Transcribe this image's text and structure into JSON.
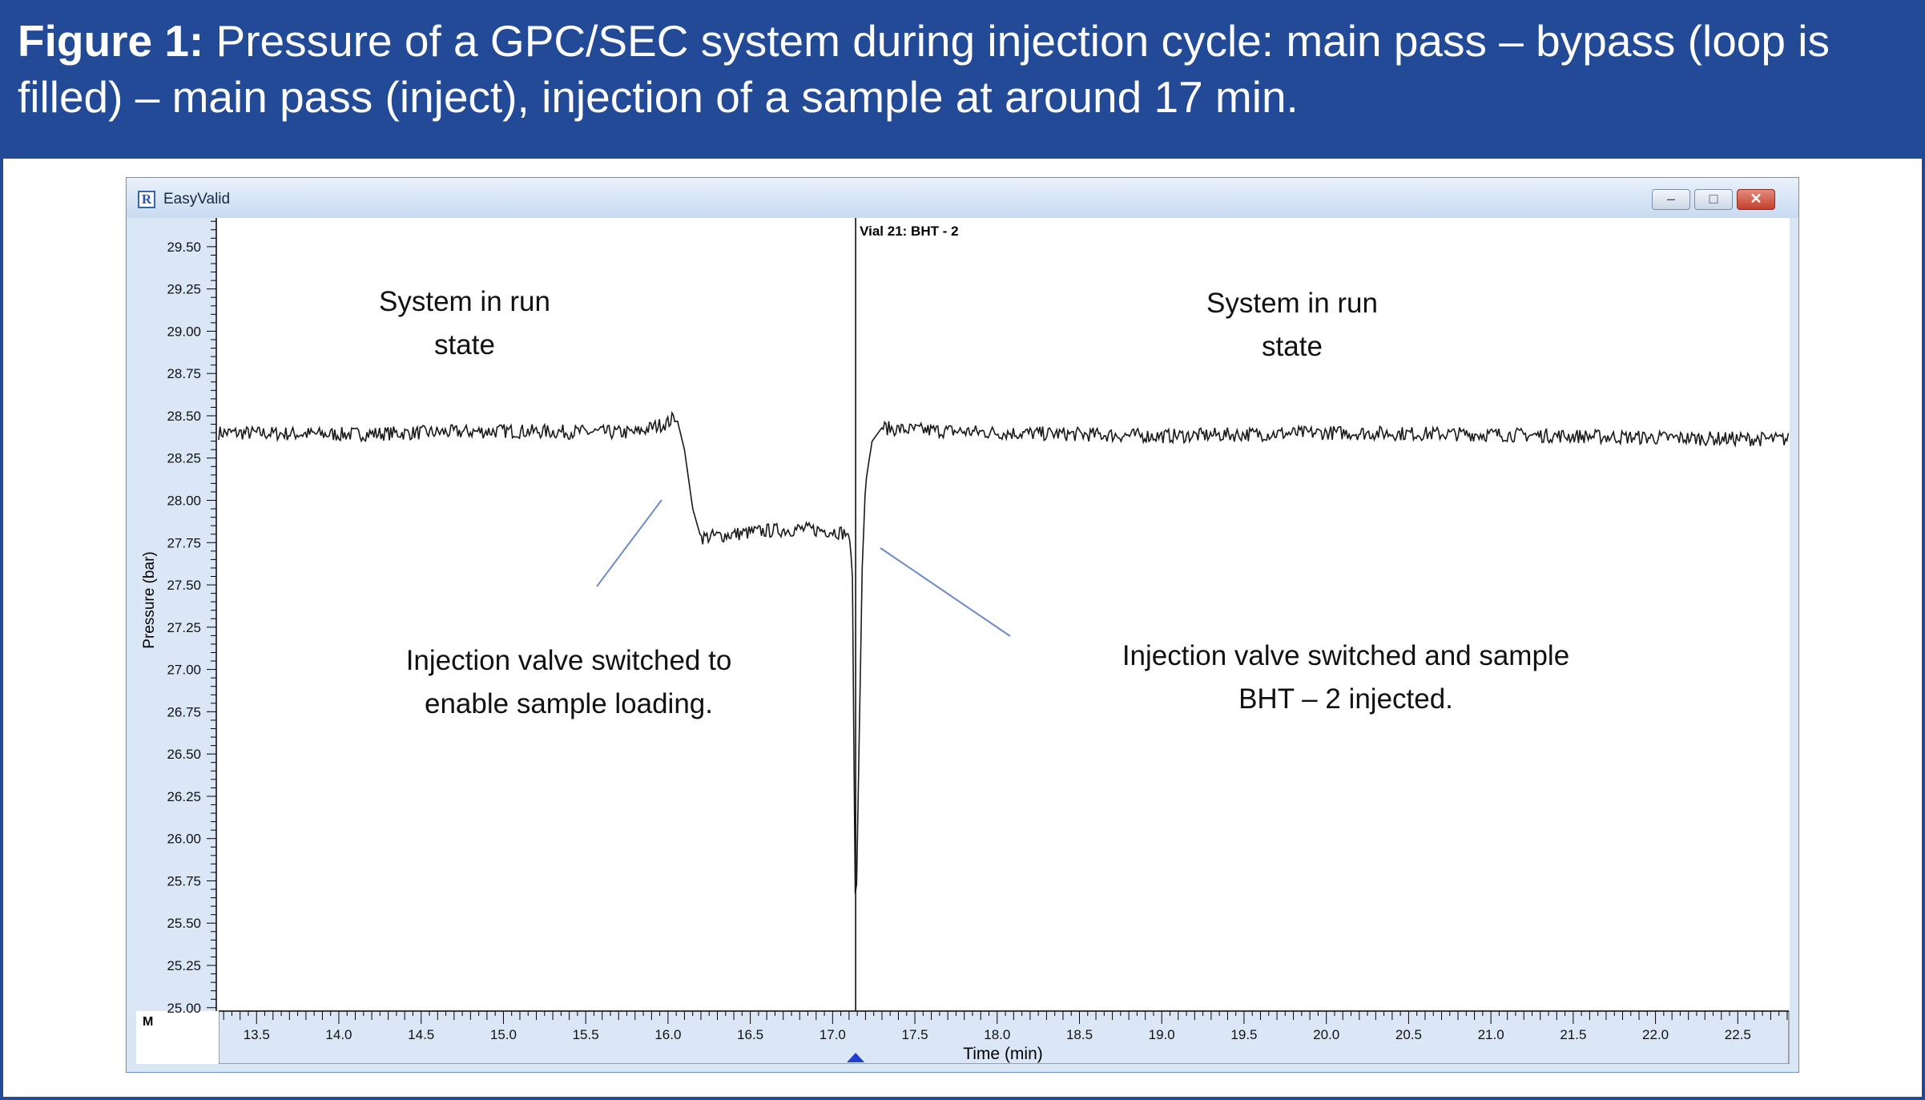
{
  "figure": {
    "label": "Figure 1:",
    "caption": "Pressure of a GPC/SEC system during injection cycle: main pass – bypass (loop is filled) – main pass (inject), injection of a sample at around 17 min."
  },
  "window": {
    "title": "EasyValid",
    "icon_letter": "R",
    "buttons": [
      "minimize",
      "maximize",
      "close"
    ]
  },
  "colors": {
    "header_bg": "#234a96",
    "axis_panel": "#dbe7f7",
    "trace": "#1a1a1a",
    "annotation_line": "#6b8cc9",
    "marker": "#1f3fd1"
  },
  "chart_data": {
    "type": "line",
    "title": "",
    "xlabel": "Time (min)",
    "ylabel": "Pressure (bar)",
    "xlim": [
      13.27,
      22.81
    ],
    "ylim": [
      24.98,
      29.67
    ],
    "x_ticks": [
      "13.5",
      "14.0",
      "14.5",
      "15.0",
      "15.5",
      "16.0",
      "16.5",
      "17.0",
      "17.5",
      "18.0",
      "18.5",
      "19.0",
      "19.5",
      "20.0",
      "20.5",
      "21.0",
      "21.5",
      "22.0",
      "22.5"
    ],
    "y_ticks": [
      "29.50",
      "29.25",
      "29.00",
      "28.75",
      "28.50",
      "28.25",
      "28.00",
      "27.75",
      "27.50",
      "27.25",
      "27.00",
      "26.75",
      "26.50",
      "26.25",
      "26.00",
      "25.75",
      "25.50",
      "25.25",
      "25.00"
    ],
    "axis_corner_label": "M",
    "vertical_marker": {
      "x": 17.14,
      "label": "Vial  21: BHT - 2"
    },
    "series": [
      {
        "x": [
          13.27,
          14.0,
          15.0,
          15.8,
          16.0,
          16.05,
          16.1,
          16.15,
          16.2,
          16.4,
          16.6,
          16.8,
          17.0,
          17.1,
          17.12,
          17.14,
          17.16,
          17.18,
          17.2,
          17.24,
          17.3,
          17.4,
          18.0,
          19.0,
          20.0,
          21.0,
          22.0,
          22.81
        ],
        "y": [
          28.4,
          28.39,
          28.41,
          28.4,
          28.46,
          28.5,
          28.3,
          27.95,
          27.78,
          27.8,
          27.82,
          27.83,
          27.82,
          27.8,
          27.6,
          25.4,
          26.5,
          27.6,
          28.1,
          28.35,
          28.43,
          28.42,
          28.4,
          28.38,
          28.4,
          28.39,
          28.37,
          28.36
        ]
      }
    ],
    "annotations": [
      "System in run\nstate",
      "System in run\nstate",
      "Injection valve switched to\nenable sample loading.",
      "Injection valve switched and sample\nBHT – 2 injected."
    ],
    "grid": false,
    "legend": "none"
  }
}
